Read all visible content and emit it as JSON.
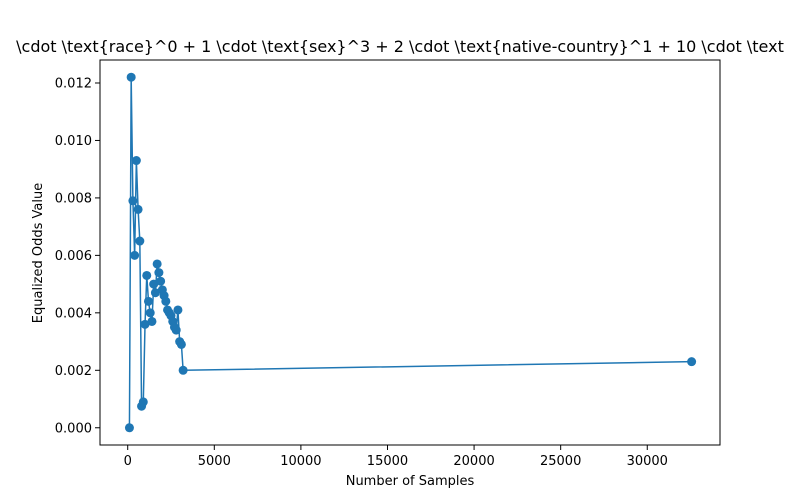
{
  "chart_data": {
    "type": "line",
    "title": "\\cdot \\text{race}^0 +  1 \\cdot \\text{sex}^3 +  2 \\cdot \\text{native-country}^1 +  10 \\cdot \\text",
    "xlabel": "Number of Samples",
    "ylabel": "Equalized Odds Value",
    "xlim": [
      -1600,
      34200
    ],
    "ylim": [
      -0.0006,
      0.0128
    ],
    "x_ticks": [
      0,
      5000,
      10000,
      15000,
      20000,
      25000,
      30000
    ],
    "x_tick_labels": [
      "0",
      "5000",
      "10000",
      "15000",
      "20000",
      "25000",
      "30000"
    ],
    "y_ticks": [
      0.0,
      0.002,
      0.004,
      0.006,
      0.008,
      0.01,
      0.012
    ],
    "y_tick_labels": [
      "0.000",
      "0.002",
      "0.004",
      "0.006",
      "0.008",
      "0.010",
      "0.012"
    ],
    "grid": false,
    "color": "#1f77b4",
    "marker": "circle",
    "series": [
      {
        "x": [
          100,
          200,
          300,
          400,
          500,
          600,
          700,
          800,
          900,
          1000,
          1100,
          1200,
          1300,
          1400,
          1500,
          1600,
          1700,
          1800,
          1900,
          2000,
          2100,
          2200,
          2300,
          2400,
          2500,
          2600,
          2700,
          2800,
          2900,
          3000,
          3100,
          3200,
          32561
        ],
        "y": [
          0.0,
          0.0122,
          0.0079,
          0.006,
          0.0093,
          0.0076,
          0.0065,
          0.00075,
          0.0009,
          0.0036,
          0.0053,
          0.0044,
          0.004,
          0.0037,
          0.005,
          0.0047,
          0.0057,
          0.0054,
          0.0051,
          0.0048,
          0.0046,
          0.0044,
          0.0041,
          0.004,
          0.0039,
          0.0037,
          0.0035,
          0.0034,
          0.0041,
          0.003,
          0.0029,
          0.002,
          0.0023
        ]
      }
    ]
  }
}
